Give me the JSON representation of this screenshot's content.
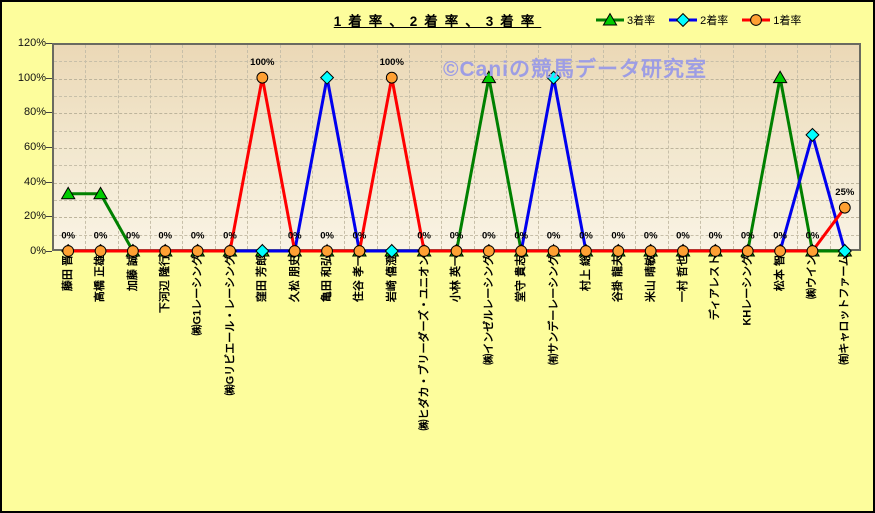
{
  "page": {
    "background_color": "#FDFD9C",
    "outer_border_color": "#000000"
  },
  "chart_data": {
    "type": "line",
    "title": "1着率、2着率、3着率",
    "watermark": "©Caniの競馬データ研究室",
    "watermark_color": "#9D9DE4",
    "ylim": [
      0,
      120
    ],
    "y_ticks": [
      "0%",
      "20%",
      "40%",
      "60%",
      "80%",
      "100%",
      "120%"
    ],
    "grid": {
      "horizontal_minor_step": 10,
      "vertical_per_category": true
    },
    "legend_position": "top-right",
    "legend_order": [
      "3着率",
      "2着率",
      "1着率"
    ],
    "categories": [
      "藤田 晋",
      "高橋 正雄",
      "加藤 誠",
      "下河辺 隆行",
      "㈱G1レーシング",
      "㈱Gリビエール・レーシング",
      "窪田 芳郎",
      "久松 朋史",
      "亀田 和弘",
      "住谷 孝一",
      "岩崎 僖澄",
      "㈱ヒダカ・ブリーダーズ・ユニオン",
      "小林 英一",
      "㈱インゼルレーシング",
      "堂守 貴志",
      "㈲サンデーレーシング",
      "村上 総",
      "谷掛 龍夫",
      "米山 晴敏",
      "一村 哲也",
      "ディアレスト",
      "KHレーシング",
      "松本 智",
      "㈱ウイン",
      "㈲キャロットファーム"
    ],
    "series": [
      {
        "name": "3着率",
        "marker": "triangle",
        "line_color": "#008000",
        "marker_fill": "#00CC00",
        "values": [
          33,
          33,
          0,
          0,
          0,
          0,
          0,
          0,
          0,
          0,
          0,
          0,
          0,
          100,
          0,
          0,
          0,
          0,
          0,
          0,
          0,
          0,
          100,
          0,
          0
        ]
      },
      {
        "name": "2着率",
        "marker": "diamond",
        "line_color": "#0000EE",
        "marker_fill": "#00FFFF",
        "values": [
          0,
          0,
          0,
          0,
          0,
          0,
          0,
          0,
          100,
          0,
          0,
          0,
          0,
          0,
          0,
          100,
          0,
          0,
          0,
          0,
          0,
          0,
          0,
          67,
          0
        ]
      },
      {
        "name": "1着率",
        "marker": "circle",
        "line_color": "#FF0000",
        "marker_fill": "#FFA033",
        "values": [
          0,
          0,
          0,
          0,
          0,
          0,
          100,
          0,
          0,
          0,
          100,
          0,
          0,
          0,
          0,
          0,
          0,
          0,
          0,
          0,
          0,
          0,
          0,
          0,
          25
        ],
        "data_labels": [
          "0%",
          "0%",
          "0%",
          "0%",
          "0%",
          "0%",
          "100%",
          "0%",
          "0%",
          "0%",
          "100%",
          "0%",
          "0%",
          "0%",
          "0%",
          "0%",
          "0%",
          "0%",
          "0%",
          "0%",
          "0%",
          "0%",
          "0%",
          "0%",
          "25%"
        ]
      }
    ]
  }
}
